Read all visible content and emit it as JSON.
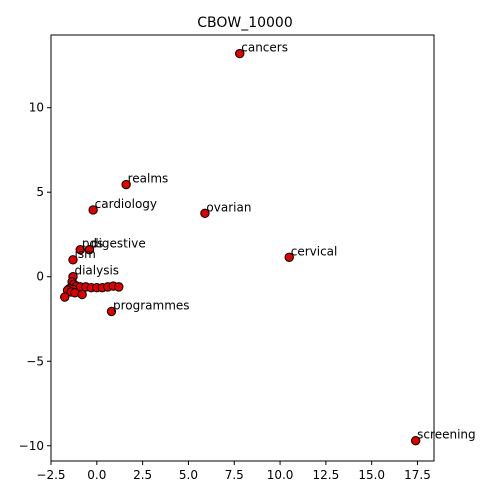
{
  "chart_data": {
    "type": "scatter",
    "title": "CBOW_10000",
    "xlabel": "",
    "ylabel": "",
    "xlim": [
      -2.5,
      18.4
    ],
    "ylim": [
      -10.9,
      14.3
    ],
    "xticks": [
      -2.5,
      0.0,
      2.5,
      5.0,
      7.5,
      10.0,
      12.5,
      15.0,
      17.5
    ],
    "xtick_labels": [
      "−2.5",
      "0.0",
      "2.5",
      "5.0",
      "7.5",
      "10.0",
      "12.5",
      "15.0",
      "17.5"
    ],
    "yticks": [
      -10,
      -5,
      0,
      5,
      10
    ],
    "ytick_labels": [
      "−10",
      "−5",
      "0",
      "5",
      "10"
    ],
    "grid": false,
    "marker_color": "#e00000",
    "marker_edge_color": "#000000",
    "points": [
      {
        "label": "cancers",
        "x": 7.8,
        "y": 13.2
      },
      {
        "label": "realms",
        "x": 1.6,
        "y": 5.45
      },
      {
        "label": "cardiology",
        "x": -0.2,
        "y": 3.95
      },
      {
        "label": "ovarian",
        "x": 5.9,
        "y": 3.75
      },
      {
        "label": "digestive",
        "x": -0.4,
        "y": 1.6
      },
      {
        "label": "pds",
        "x": -0.9,
        "y": 1.6
      },
      {
        "label": "ism",
        "x": -1.3,
        "y": 1.0
      },
      {
        "label": "cervical",
        "x": 10.5,
        "y": 1.15
      },
      {
        "label": "dialysis",
        "x": -1.3,
        "y": 0.0
      },
      {
        "label": "",
        "x": -1.35,
        "y": -0.3
      },
      {
        "label": "",
        "x": -1.25,
        "y": -0.45
      },
      {
        "label": "",
        "x": -1.1,
        "y": -0.55
      },
      {
        "label": "",
        "x": -0.9,
        "y": -0.6
      },
      {
        "label": "",
        "x": -0.6,
        "y": -0.6
      },
      {
        "label": "",
        "x": -0.3,
        "y": -0.65
      },
      {
        "label": "",
        "x": 0.0,
        "y": -0.65
      },
      {
        "label": "",
        "x": 0.3,
        "y": -0.65
      },
      {
        "label": "",
        "x": 0.6,
        "y": -0.6
      },
      {
        "label": "",
        "x": 0.9,
        "y": -0.55
      },
      {
        "label": "",
        "x": 1.2,
        "y": -0.6
      },
      {
        "label": "",
        "x": -1.5,
        "y": -0.7
      },
      {
        "label": "",
        "x": -1.3,
        "y": -0.75
      },
      {
        "label": "",
        "x": -1.6,
        "y": -0.8
      },
      {
        "label": "",
        "x": -1.4,
        "y": -0.9
      },
      {
        "label": "",
        "x": -1.2,
        "y": -0.95
      },
      {
        "label": "",
        "x": -1.75,
        "y": -1.2
      },
      {
        "label": "",
        "x": -0.8,
        "y": -1.05
      },
      {
        "label": "programmes",
        "x": 0.8,
        "y": -2.05
      },
      {
        "label": "screening",
        "x": 17.4,
        "y": -9.7
      }
    ]
  }
}
